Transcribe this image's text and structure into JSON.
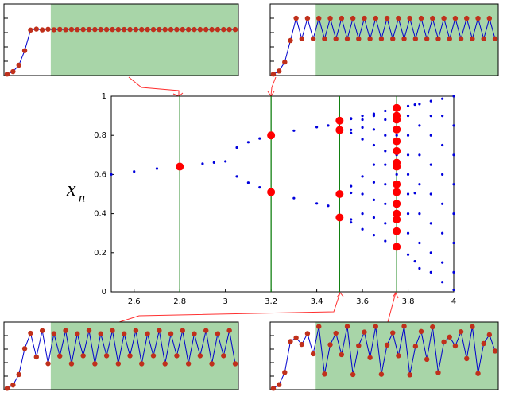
{
  "chart_data": [
    {
      "type": "scatter",
      "ylabel": "x",
      "ylabel_sub": "n",
      "xlim": [
        2.5,
        4
      ],
      "ylim": [
        0,
        1
      ],
      "xticks": [
        2.6,
        2.8,
        3,
        3.2,
        3.4,
        3.6,
        3.8,
        4
      ],
      "yticks": [
        0,
        0.2,
        0.4,
        0.6,
        0.8,
        1
      ],
      "point_color": "#0000dd",
      "vlines": [
        2.8,
        3.2,
        3.5,
        3.75
      ],
      "vline_color": "#007700",
      "series": [
        {
          "x": [
            2.5
          ],
          "values": [
            0.6
          ]
        },
        {
          "x": [
            2.6
          ],
          "values": [
            0.615
          ]
        },
        {
          "x": [
            2.7
          ],
          "values": [
            0.63
          ]
        },
        {
          "x": [
            2.8
          ],
          "values": [
            0.643
          ]
        },
        {
          "x": [
            2.9
          ],
          "values": [
            0.655
          ]
        },
        {
          "x": [
            2.95
          ],
          "values": [
            0.661
          ]
        },
        {
          "x": [
            3.0
          ],
          "values": [
            0.667
          ]
        },
        {
          "x": [
            3.05,
            3.05
          ],
          "values": [
            0.738,
            0.59
          ]
        },
        {
          "x": [
            3.1,
            3.1
          ],
          "values": [
            0.765,
            0.558
          ]
        },
        {
          "x": [
            3.15,
            3.15
          ],
          "values": [
            0.784,
            0.534
          ]
        },
        {
          "x": [
            3.2,
            3.2
          ],
          "values": [
            0.799,
            0.513
          ]
        },
        {
          "x": [
            3.3,
            3.3
          ],
          "values": [
            0.824,
            0.479
          ]
        },
        {
          "x": [
            3.4,
            3.4
          ],
          "values": [
            0.842,
            0.452
          ]
        },
        {
          "x": [
            3.45,
            3.45
          ],
          "values": [
            0.85,
            0.44
          ]
        },
        {
          "x": [
            3.5,
            3.5,
            3.5,
            3.5
          ],
          "values": [
            0.875,
            0.383,
            0.827,
            0.501
          ]
        },
        {
          "x": [
            3.55,
            3.55,
            3.55,
            3.55,
            3.55,
            3.55,
            3.55,
            3.55
          ],
          "values": [
            0.355,
            0.37,
            0.506,
            0.54,
            0.812,
            0.828,
            0.884,
            0.887
          ]
        },
        {
          "x": [
            3.6,
            3.6,
            3.6,
            3.6,
            3.6,
            3.6,
            3.6,
            3.6
          ],
          "values": [
            0.32,
            0.4,
            0.5,
            0.59,
            0.78,
            0.84,
            0.88,
            0.9
          ]
        },
        {
          "x": [
            3.65,
            3.65,
            3.65,
            3.65,
            3.65,
            3.65,
            3.65,
            3.65,
            3.65
          ],
          "values": [
            0.29,
            0.38,
            0.47,
            0.56,
            0.65,
            0.75,
            0.83,
            0.9,
            0.91
          ]
        },
        {
          "x": [
            3.7,
            3.7,
            3.7,
            3.7,
            3.7,
            3.7,
            3.7,
            3.7,
            3.7
          ],
          "values": [
            0.26,
            0.35,
            0.45,
            0.55,
            0.65,
            0.72,
            0.8,
            0.88,
            0.925
          ]
        },
        {
          "x": [
            3.75,
            3.75,
            3.75,
            3.75,
            3.75,
            3.75,
            3.75,
            3.75,
            3.75
          ],
          "values": [
            0.23,
            0.3,
            0.4,
            0.5,
            0.6,
            0.7,
            0.8,
            0.88,
            0.937
          ]
        },
        {
          "x": [
            3.8,
            3.8,
            3.8,
            3.8,
            3.8,
            3.8,
            3.8,
            3.8,
            3.8
          ],
          "values": [
            0.19,
            0.3,
            0.4,
            0.5,
            0.6,
            0.7,
            0.8,
            0.9,
            0.95
          ]
        },
        {
          "x": [
            3.83,
            3.83,
            3.83
          ],
          "values": [
            0.156,
            0.505,
            0.957
          ]
        },
        {
          "x": [
            3.85,
            3.85,
            3.85,
            3.85,
            3.85,
            3.85,
            3.85
          ],
          "values": [
            0.12,
            0.25,
            0.4,
            0.55,
            0.7,
            0.85,
            0.96
          ]
        },
        {
          "x": [
            3.9,
            3.9,
            3.9,
            3.9,
            3.9,
            3.9,
            3.9,
            3.9
          ],
          "values": [
            0.1,
            0.2,
            0.35,
            0.5,
            0.65,
            0.8,
            0.9,
            0.975
          ]
        },
        {
          "x": [
            3.95,
            3.95,
            3.95,
            3.95,
            3.95,
            3.95,
            3.95,
            3.95
          ],
          "values": [
            0.05,
            0.15,
            0.3,
            0.45,
            0.6,
            0.75,
            0.9,
            0.987
          ]
        },
        {
          "x": [
            4.0,
            4.0,
            4.0,
            4.0,
            4.0,
            4.0,
            4.0,
            4.0
          ],
          "values": [
            0.01,
            0.1,
            0.25,
            0.4,
            0.55,
            0.7,
            0.85,
            1.0
          ]
        }
      ],
      "highlights": {
        "color": "#ff0000",
        "x": [
          2.8,
          3.2,
          3.2,
          3.5,
          3.5,
          3.5,
          3.5,
          3.75,
          3.75,
          3.75,
          3.75,
          3.75,
          3.75,
          3.75,
          3.75,
          3.75,
          3.75,
          3.75,
          3.75,
          3.75,
          3.75,
          3.75
        ],
        "values": [
          0.64,
          0.8,
          0.51,
          0.875,
          0.827,
          0.5,
          0.38,
          0.94,
          0.9,
          0.88,
          0.83,
          0.77,
          0.72,
          0.66,
          0.64,
          0.55,
          0.51,
          0.45,
          0.4,
          0.37,
          0.31,
          0.23
        ]
      }
    },
    {
      "type": "line",
      "ylim": [
        0,
        1
      ],
      "yticks": [
        0.2,
        0.4,
        0.6,
        0.8
      ],
      "shade_from": 8,
      "shade_color": "#a8d5a8",
      "line_color": "#0000cc",
      "marker_color": "#c0301b",
      "values": [
        0.02,
        0.055,
        0.145,
        0.348,
        0.635,
        0.649,
        0.638,
        0.647,
        0.64,
        0.645,
        0.641,
        0.644,
        0.642,
        0.643,
        0.643,
        0.643,
        0.643,
        0.643,
        0.643,
        0.643,
        0.643,
        0.643,
        0.643,
        0.643,
        0.643,
        0.643,
        0.643,
        0.643,
        0.643,
        0.643,
        0.643,
        0.643,
        0.643,
        0.643,
        0.643,
        0.643,
        0.643,
        0.643,
        0.643,
        0.643
      ]
    },
    {
      "type": "line",
      "ylim": [
        0,
        1
      ],
      "yticks": [
        0.2,
        0.4,
        0.6,
        0.8
      ],
      "shade_from": 8,
      "shade_color": "#a8d5a8",
      "line_color": "#0000cc",
      "marker_color": "#c0301b",
      "values": [
        0.02,
        0.063,
        0.188,
        0.489,
        0.8,
        0.513,
        0.799,
        0.513,
        0.799,
        0.513,
        0.799,
        0.513,
        0.799,
        0.513,
        0.799,
        0.513,
        0.799,
        0.513,
        0.799,
        0.513,
        0.799,
        0.513,
        0.799,
        0.513,
        0.799,
        0.513,
        0.799,
        0.513,
        0.799,
        0.513,
        0.799,
        0.513,
        0.799,
        0.513,
        0.799,
        0.513,
        0.799,
        0.513,
        0.799,
        0.513
      ]
    },
    {
      "type": "line",
      "ylim": [
        0,
        1
      ],
      "yticks": [
        0.2,
        0.4,
        0.6,
        0.8
      ],
      "shade_from": 8,
      "shade_color": "#a8d5a8",
      "line_color": "#0000cc",
      "marker_color": "#c0301b",
      "values": [
        0.02,
        0.069,
        0.224,
        0.608,
        0.835,
        0.483,
        0.874,
        0.385,
        0.829,
        0.497,
        0.875,
        0.383,
        0.827,
        0.501,
        0.875,
        0.383,
        0.827,
        0.501,
        0.875,
        0.383,
        0.827,
        0.501,
        0.875,
        0.383,
        0.827,
        0.501,
        0.875,
        0.383,
        0.827,
        0.501,
        0.875,
        0.383,
        0.827,
        0.501,
        0.875,
        0.383,
        0.827,
        0.501,
        0.875,
        0.383
      ]
    },
    {
      "type": "line",
      "ylim": [
        0,
        1
      ],
      "yticks": [
        0.2,
        0.4,
        0.6,
        0.8
      ],
      "shade_from": 8,
      "shade_color": "#a8d5a8",
      "line_color": "#0000cc",
      "marker_color": "#c0301b",
      "values": [
        0.02,
        0.074,
        0.255,
        0.713,
        0.767,
        0.67,
        0.83,
        0.53,
        0.934,
        0.231,
        0.666,
        0.835,
        0.518,
        0.936,
        0.224,
        0.651,
        0.852,
        0.473,
        0.935,
        0.228,
        0.661,
        0.841,
        0.502,
        0.938,
        0.22,
        0.643,
        0.861,
        0.449,
        0.928,
        0.252,
        0.706,
        0.779,
        0.647,
        0.857,
        0.46,
        0.932,
        0.239,
        0.683,
        0.813,
        0.571
      ]
    }
  ]
}
